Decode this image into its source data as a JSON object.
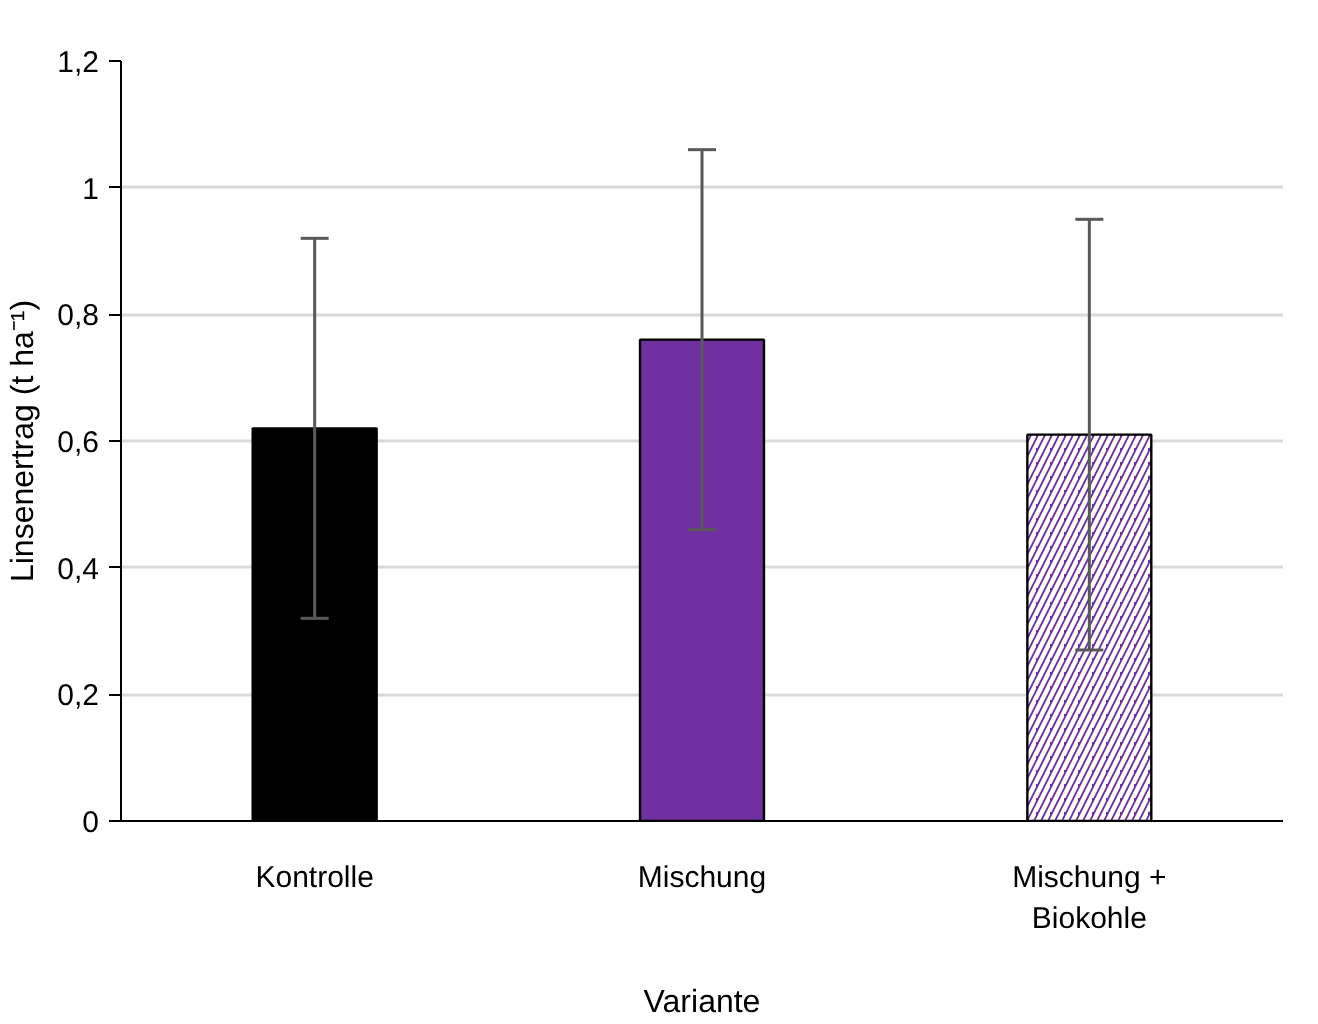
{
  "chart_data": {
    "type": "bar",
    "xlabel": "Variante",
    "ylabel": "Linsenertrag (t ha⁻¹)",
    "categories": [
      "Kontrolle",
      "Mischung",
      "Mischung + Biokohle"
    ],
    "values": [
      0.62,
      0.76,
      0.61
    ],
    "errors": [
      0.3,
      0.3,
      0.34
    ],
    "colors": [
      "#000000",
      "#7030a0",
      "#7030a0"
    ],
    "ylim": [
      0,
      1.2
    ],
    "yticks": [
      0,
      {
        "value": 0.2,
        "label": "0,2"
      },
      {
        "value": 0.4,
        "label": "0,4"
      },
      {
        "value": 0.6,
        "label": "0,6"
      },
      {
        "value": 0.8,
        "label": "0,8"
      },
      1,
      {
        "value": 1.2,
        "label": "1,2"
      }
    ],
    "grid": "y"
  }
}
